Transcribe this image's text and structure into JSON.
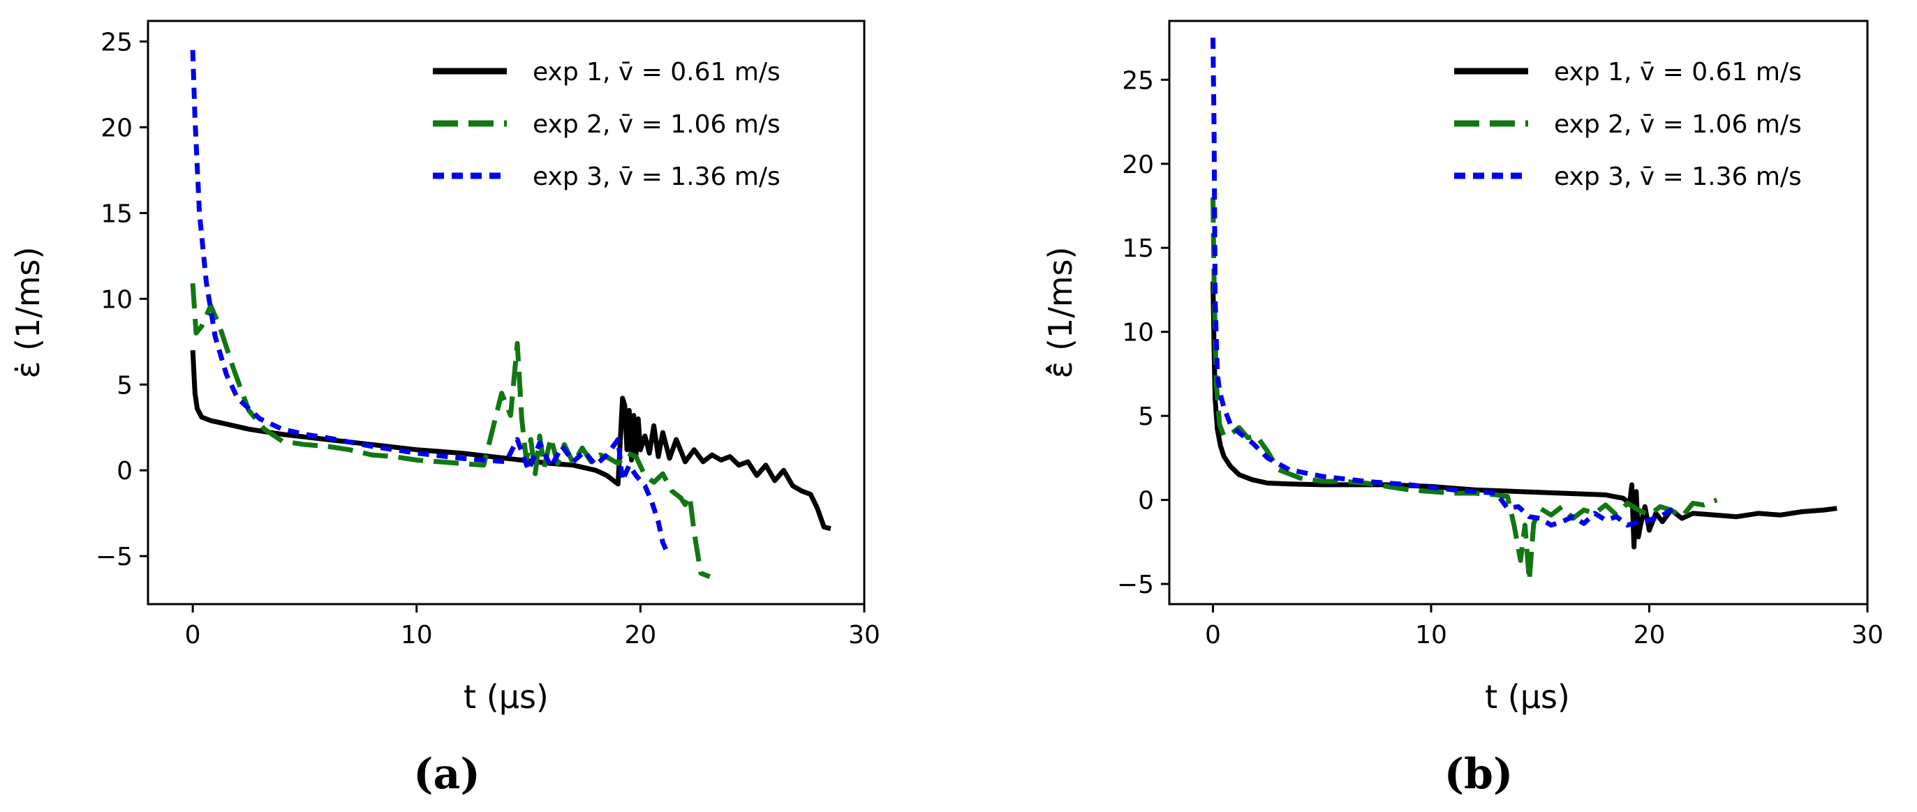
{
  "series_styles": [
    {
      "key": "exp1",
      "color": "#000000",
      "dash": "solid"
    },
    {
      "key": "exp2",
      "color": "#117711",
      "dash": "long-dash"
    },
    {
      "key": "exp3",
      "color": "#0000ee",
      "dash": "short-dash"
    }
  ],
  "chart_data": [
    {
      "type": "line",
      "panel_label": "(a)",
      "xlabel": "t (μs)",
      "ylabel": "ε̇ (1/ms)",
      "xlim": [
        -2,
        30
      ],
      "ylim": [
        -7.8,
        26.2
      ],
      "xticks": [
        0,
        10,
        20,
        30
      ],
      "yticks": [
        -5,
        0,
        5,
        10,
        15,
        20,
        25
      ],
      "legend": [
        "exp 1, v̄ = 0.61 m/s",
        "exp 2, v̄ = 1.06 m/s",
        "exp 3, v̄ = 1.36 m/s"
      ],
      "legend_position": "top-right",
      "series": [
        {
          "name": "exp 1, v̄ = 0.61 m/s",
          "x": [
            0,
            0.1,
            0.2,
            0.4,
            0.8,
            1.5,
            2.5,
            4,
            6,
            8,
            10,
            12,
            14,
            16,
            17,
            18,
            18.5,
            19,
            19.2,
            19.3,
            19.4,
            19.5,
            19.6,
            19.7,
            19.8,
            19.9,
            20,
            20.2,
            20.4,
            20.6,
            20.8,
            21,
            21.3,
            21.6,
            22,
            22.4,
            22.8,
            23.2,
            23.6,
            24,
            24.4,
            24.8,
            25.2,
            25.6,
            26,
            26.4,
            26.8,
            27.2,
            27.6,
            27.9,
            28.2,
            28.5
          ],
          "y": [
            7.0,
            4.5,
            3.6,
            3.1,
            2.9,
            2.7,
            2.4,
            2.1,
            1.8,
            1.5,
            1.2,
            1.0,
            0.7,
            0.4,
            0.3,
            0.0,
            -0.3,
            -0.8,
            4.2,
            3.8,
            1.2,
            3.5,
            0.6,
            3.2,
            0.9,
            3.0,
            1.2,
            2.0,
            1.0,
            2.6,
            0.8,
            2.2,
            0.7,
            1.8,
            0.5,
            1.2,
            0.5,
            0.9,
            0.6,
            0.8,
            0.3,
            0.5,
            -0.3,
            0.3,
            -0.6,
            0.0,
            -0.9,
            -1.2,
            -1.4,
            -2.2,
            -3.3,
            -3.4
          ]
        },
        {
          "name": "exp 2, v̄ = 1.06 m/s",
          "x": [
            0,
            0.15,
            0.4,
            0.8,
            1.2,
            1.8,
            2.5,
            3.2,
            4,
            5,
            6,
            7,
            8,
            9,
            10,
            11,
            12,
            13,
            13.8,
            14.2,
            14.5,
            14.7,
            14.9,
            15.1,
            15.3,
            15.5,
            15.7,
            16,
            16.3,
            16.6,
            17,
            17.4,
            17.8,
            18.2,
            18.6,
            19,
            19.4,
            19.8,
            20.2,
            20.6,
            21,
            21.4,
            21.8,
            22,
            22.2,
            22.4,
            22.7,
            23.1
          ],
          "y": [
            10.9,
            8.0,
            8.4,
            9.6,
            8.4,
            6.0,
            3.5,
            2.4,
            1.7,
            1.5,
            1.4,
            1.2,
            0.9,
            0.8,
            0.6,
            0.5,
            0.4,
            0.3,
            4.5,
            3.2,
            7.4,
            3.0,
            0.6,
            1.8,
            -0.2,
            2.0,
            0.2,
            1.9,
            0.4,
            1.5,
            0.4,
            1.3,
            0.5,
            0.9,
            0.7,
            0.4,
            1.0,
            0.8,
            -0.3,
            -0.7,
            -0.2,
            -1.2,
            -1.6,
            -2.0,
            -1.5,
            -3.6,
            -6.0,
            -6.2
          ]
        },
        {
          "name": "exp 3, v̄ = 1.36 m/s",
          "x": [
            0,
            0.1,
            0.3,
            0.6,
            1,
            1.5,
            2,
            3,
            4,
            5,
            6,
            8,
            10,
            12,
            13,
            14,
            14.5,
            15,
            15.5,
            16,
            16.5,
            17,
            17.5,
            18,
            18.5,
            19,
            19.2,
            19.5,
            19.8,
            20,
            20.2,
            20.5,
            20.8,
            21.0,
            21.2
          ],
          "y": [
            24.5,
            20.5,
            15.0,
            11.0,
            7.8,
            5.6,
            4.2,
            3.0,
            2.4,
            2.1,
            1.9,
            1.4,
            1.0,
            0.7,
            0.6,
            0.5,
            1.8,
            0.0,
            1.6,
            0.2,
            1.4,
            0.5,
            1.1,
            0.3,
            0.9,
            1.8,
            -0.6,
            0.3,
            -0.3,
            -0.6,
            -0.9,
            -1.8,
            -3.0,
            -4.2,
            -4.8
          ]
        }
      ]
    },
    {
      "type": "line",
      "panel_label": "(b)",
      "xlabel": "t (μs)",
      "ylabel": "ε̂̇ (1/ms)",
      "xlim": [
        -2,
        30
      ],
      "ylim": [
        -6.2,
        28.5
      ],
      "xticks": [
        0,
        10,
        20,
        30
      ],
      "yticks": [
        -5,
        0,
        5,
        10,
        15,
        20,
        25
      ],
      "legend": [
        "exp 1, v̄ = 0.61 m/s",
        "exp 2, v̄ = 1.06 m/s",
        "exp 3, v̄ = 1.36 m/s"
      ],
      "legend_position": "top-right",
      "series": [
        {
          "name": "exp 1, v̄ = 0.61 m/s",
          "x": [
            0,
            0.05,
            0.1,
            0.2,
            0.35,
            0.5,
            0.8,
            1.2,
            1.8,
            2.5,
            3.5,
            5,
            8,
            10,
            12,
            14,
            16,
            18,
            18.8,
            19.1,
            19.2,
            19.3,
            19.4,
            19.5,
            19.6,
            19.8,
            20,
            20.3,
            20.6,
            21,
            21.5,
            22,
            23,
            24,
            25,
            26,
            27,
            28,
            28.6
          ],
          "y": [
            13.0,
            9.0,
            6.0,
            4.2,
            3.2,
            2.6,
            2.0,
            1.5,
            1.2,
            1.0,
            0.95,
            0.9,
            0.9,
            0.8,
            0.6,
            0.5,
            0.4,
            0.3,
            0.1,
            -0.2,
            0.9,
            -2.8,
            0.5,
            -2.2,
            -1.5,
            -0.4,
            -1.8,
            -0.8,
            -1.3,
            -0.6,
            -1.1,
            -0.8,
            -0.9,
            -1.0,
            -0.8,
            -0.9,
            -0.7,
            -0.6,
            -0.5
          ]
        },
        {
          "name": "exp 2, v̄ = 1.06 m/s",
          "x": [
            0,
            0.05,
            0.15,
            0.3,
            0.5,
            0.8,
            1.2,
            1.6,
            2,
            2.5,
            3,
            4,
            5,
            6,
            7,
            8,
            9,
            10,
            11,
            12,
            13,
            13.5,
            13.8,
            14.1,
            14.3,
            14.5,
            14.7,
            15,
            15.5,
            16,
            16.5,
            17,
            17.5,
            18,
            18.5,
            19,
            19.5,
            20,
            20.5,
            21,
            21.5,
            22,
            22.5,
            23.1
          ],
          "y": [
            18.0,
            13.0,
            7.0,
            4.5,
            3.8,
            3.9,
            4.3,
            3.7,
            3.8,
            2.9,
            1.8,
            1.3,
            1.1,
            1.1,
            1.0,
            0.8,
            0.6,
            0.5,
            0.4,
            0.4,
            0.3,
            0.2,
            -1.5,
            -3.6,
            -1.5,
            -4.8,
            -1.4,
            -0.5,
            -0.9,
            -0.4,
            -1.1,
            -0.6,
            -0.8,
            -0.3,
            -0.9,
            -0.2,
            -0.6,
            -0.9,
            -0.4,
            -0.6,
            -1.0,
            -0.2,
            -0.3,
            0.0
          ]
        },
        {
          "name": "exp 3, v̄ = 1.36 m/s",
          "x": [
            0,
            0.05,
            0.1,
            0.2,
            0.3,
            0.5,
            0.8,
            1.2,
            1.8,
            2.5,
            3.5,
            5,
            7,
            9,
            11,
            12,
            13,
            13.5,
            14,
            14.5,
            15,
            15.5,
            16,
            16.5,
            17,
            17.5,
            18,
            18.5,
            19,
            19.5,
            20,
            20.5,
            21,
            21.3
          ],
          "y": [
            27.5,
            22.0,
            12.0,
            7.5,
            6.5,
            5.5,
            4.5,
            4.0,
            3.4,
            2.5,
            1.8,
            1.4,
            1.1,
            0.9,
            0.6,
            0.5,
            0.4,
            -0.5,
            -0.4,
            -1.0,
            -1.1,
            -1.5,
            -1.3,
            -1.0,
            -1.4,
            -0.8,
            -1.2,
            -1.0,
            -1.5,
            -1.3,
            -1.2,
            -1.0,
            -0.6,
            -0.4
          ]
        }
      ]
    }
  ]
}
